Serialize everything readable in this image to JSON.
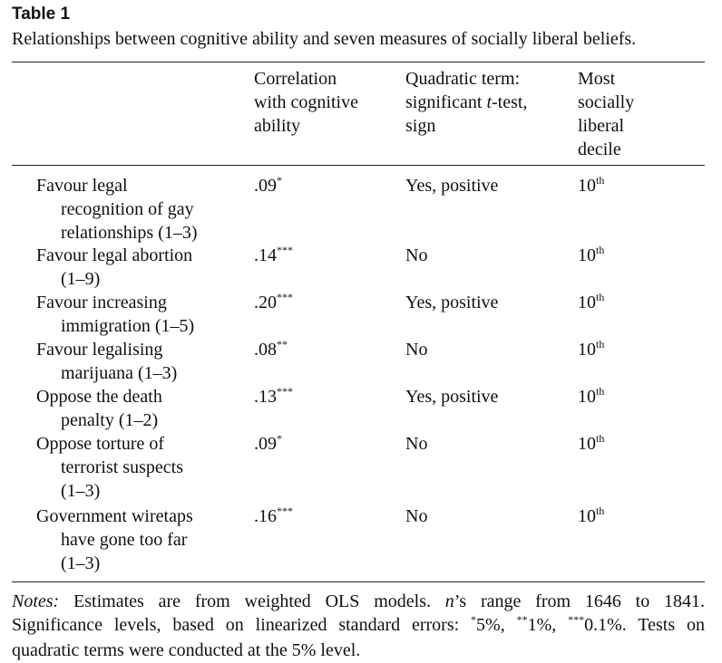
{
  "caption": {
    "title": "Table 1",
    "subtitle": "Relationships between cognitive ability and seven measures of socially liberal beliefs."
  },
  "headers": {
    "correlation": [
      "Correlation",
      "with cognitive",
      "ability"
    ],
    "quadratic": [
      "Quadratic term:",
      "significant ",
      "t",
      "-test,",
      "sign"
    ],
    "decile": [
      "Most",
      "socially",
      "liberal",
      "decile"
    ]
  },
  "rows": [
    {
      "measure": [
        "Favour legal",
        "recognition of gay",
        "relationships (1–3)"
      ],
      "corr": ".09",
      "sig": "*",
      "quad": "Yes, positive",
      "decile": "10",
      "decile_sup": "th"
    },
    {
      "measure": [
        "Favour legal abortion",
        "(1–9)"
      ],
      "corr": ".14",
      "sig": "***",
      "quad": "No",
      "decile": "10",
      "decile_sup": "th"
    },
    {
      "measure": [
        "Favour increasing",
        "immigration (1–5)"
      ],
      "corr": ".20",
      "sig": "***",
      "quad": "Yes, positive",
      "decile": "10",
      "decile_sup": "th"
    },
    {
      "measure": [
        "Favour legalising",
        "marijuana (1–3)"
      ],
      "corr": ".08",
      "sig": "**",
      "quad": "No",
      "decile": "10",
      "decile_sup": "th"
    },
    {
      "measure": [
        "Oppose the death",
        "penalty (1–2)"
      ],
      "corr": ".13",
      "sig": "***",
      "quad": "Yes, positive",
      "decile": "10",
      "decile_sup": "th"
    },
    {
      "measure": [
        "Oppose torture of",
        "terrorist suspects",
        "(1–3)"
      ],
      "corr": ".09",
      "sig": "*",
      "quad": "No",
      "decile": "10",
      "decile_sup": "th"
    },
    {
      "measure": [
        "Government wiretaps",
        "have gone too far",
        "(1–3)"
      ],
      "corr": ".16",
      "sig": "***",
      "quad": "No",
      "decile": "10",
      "decile_sup": "th"
    }
  ],
  "notes": {
    "label": "Notes:",
    "l1a": " Estimates are from weighted OLS models. ",
    "l1n": "n",
    "l1b": "’s range from 1646 to 1841.",
    "l2a": "Significance levels, based on linearized standard errors: ",
    "s1": "*",
    "p1": "5%, ",
    "s2": "**",
    "p2": "1%, ",
    "s3": "***",
    "p3": "0.1%. Tests on",
    "l3": "quadratic terms were conducted at the 5% level."
  }
}
